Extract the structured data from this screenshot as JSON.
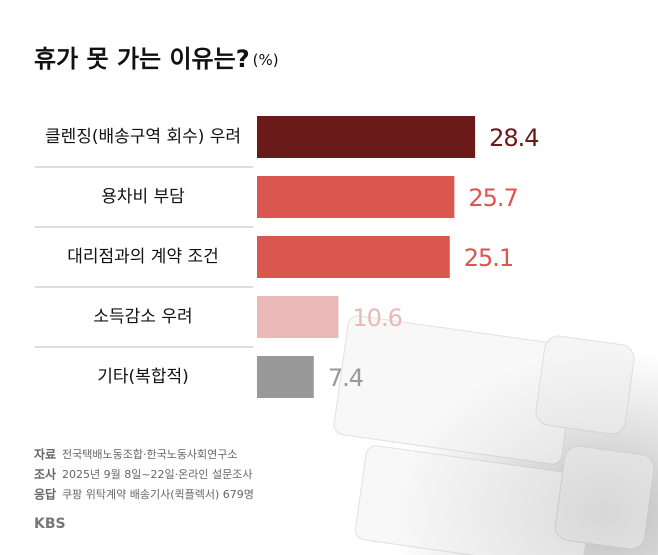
{
  "chart_data": {
    "type": "bar",
    "orientation": "horizontal",
    "title": "휴가 못 가는 이유는?",
    "unit": "(%)",
    "categories": [
      "클렌징(배송구역 회수) 우려",
      "용차비 부담",
      "대리점과의 계약 조건",
      "소득감소 우려",
      "기타(복합적)"
    ],
    "values": [
      28.4,
      25.7,
      25.1,
      10.6,
      7.4
    ],
    "colors": [
      "#6b1a1a",
      "#d9574f",
      "#d9574f",
      "#e9b9b7",
      "#999999"
    ]
  },
  "notes": [
    {
      "label": "자료",
      "text": "전국택배노동조합·한국노동사회연구소"
    },
    {
      "label": "조사",
      "text": "2025년 9월 8일~22일·온라인 설문조사"
    },
    {
      "label": "응답",
      "text": "쿠팡 위탁계약 배송기사(퀵플렉서) 679명"
    }
  ],
  "logo": "KBS"
}
